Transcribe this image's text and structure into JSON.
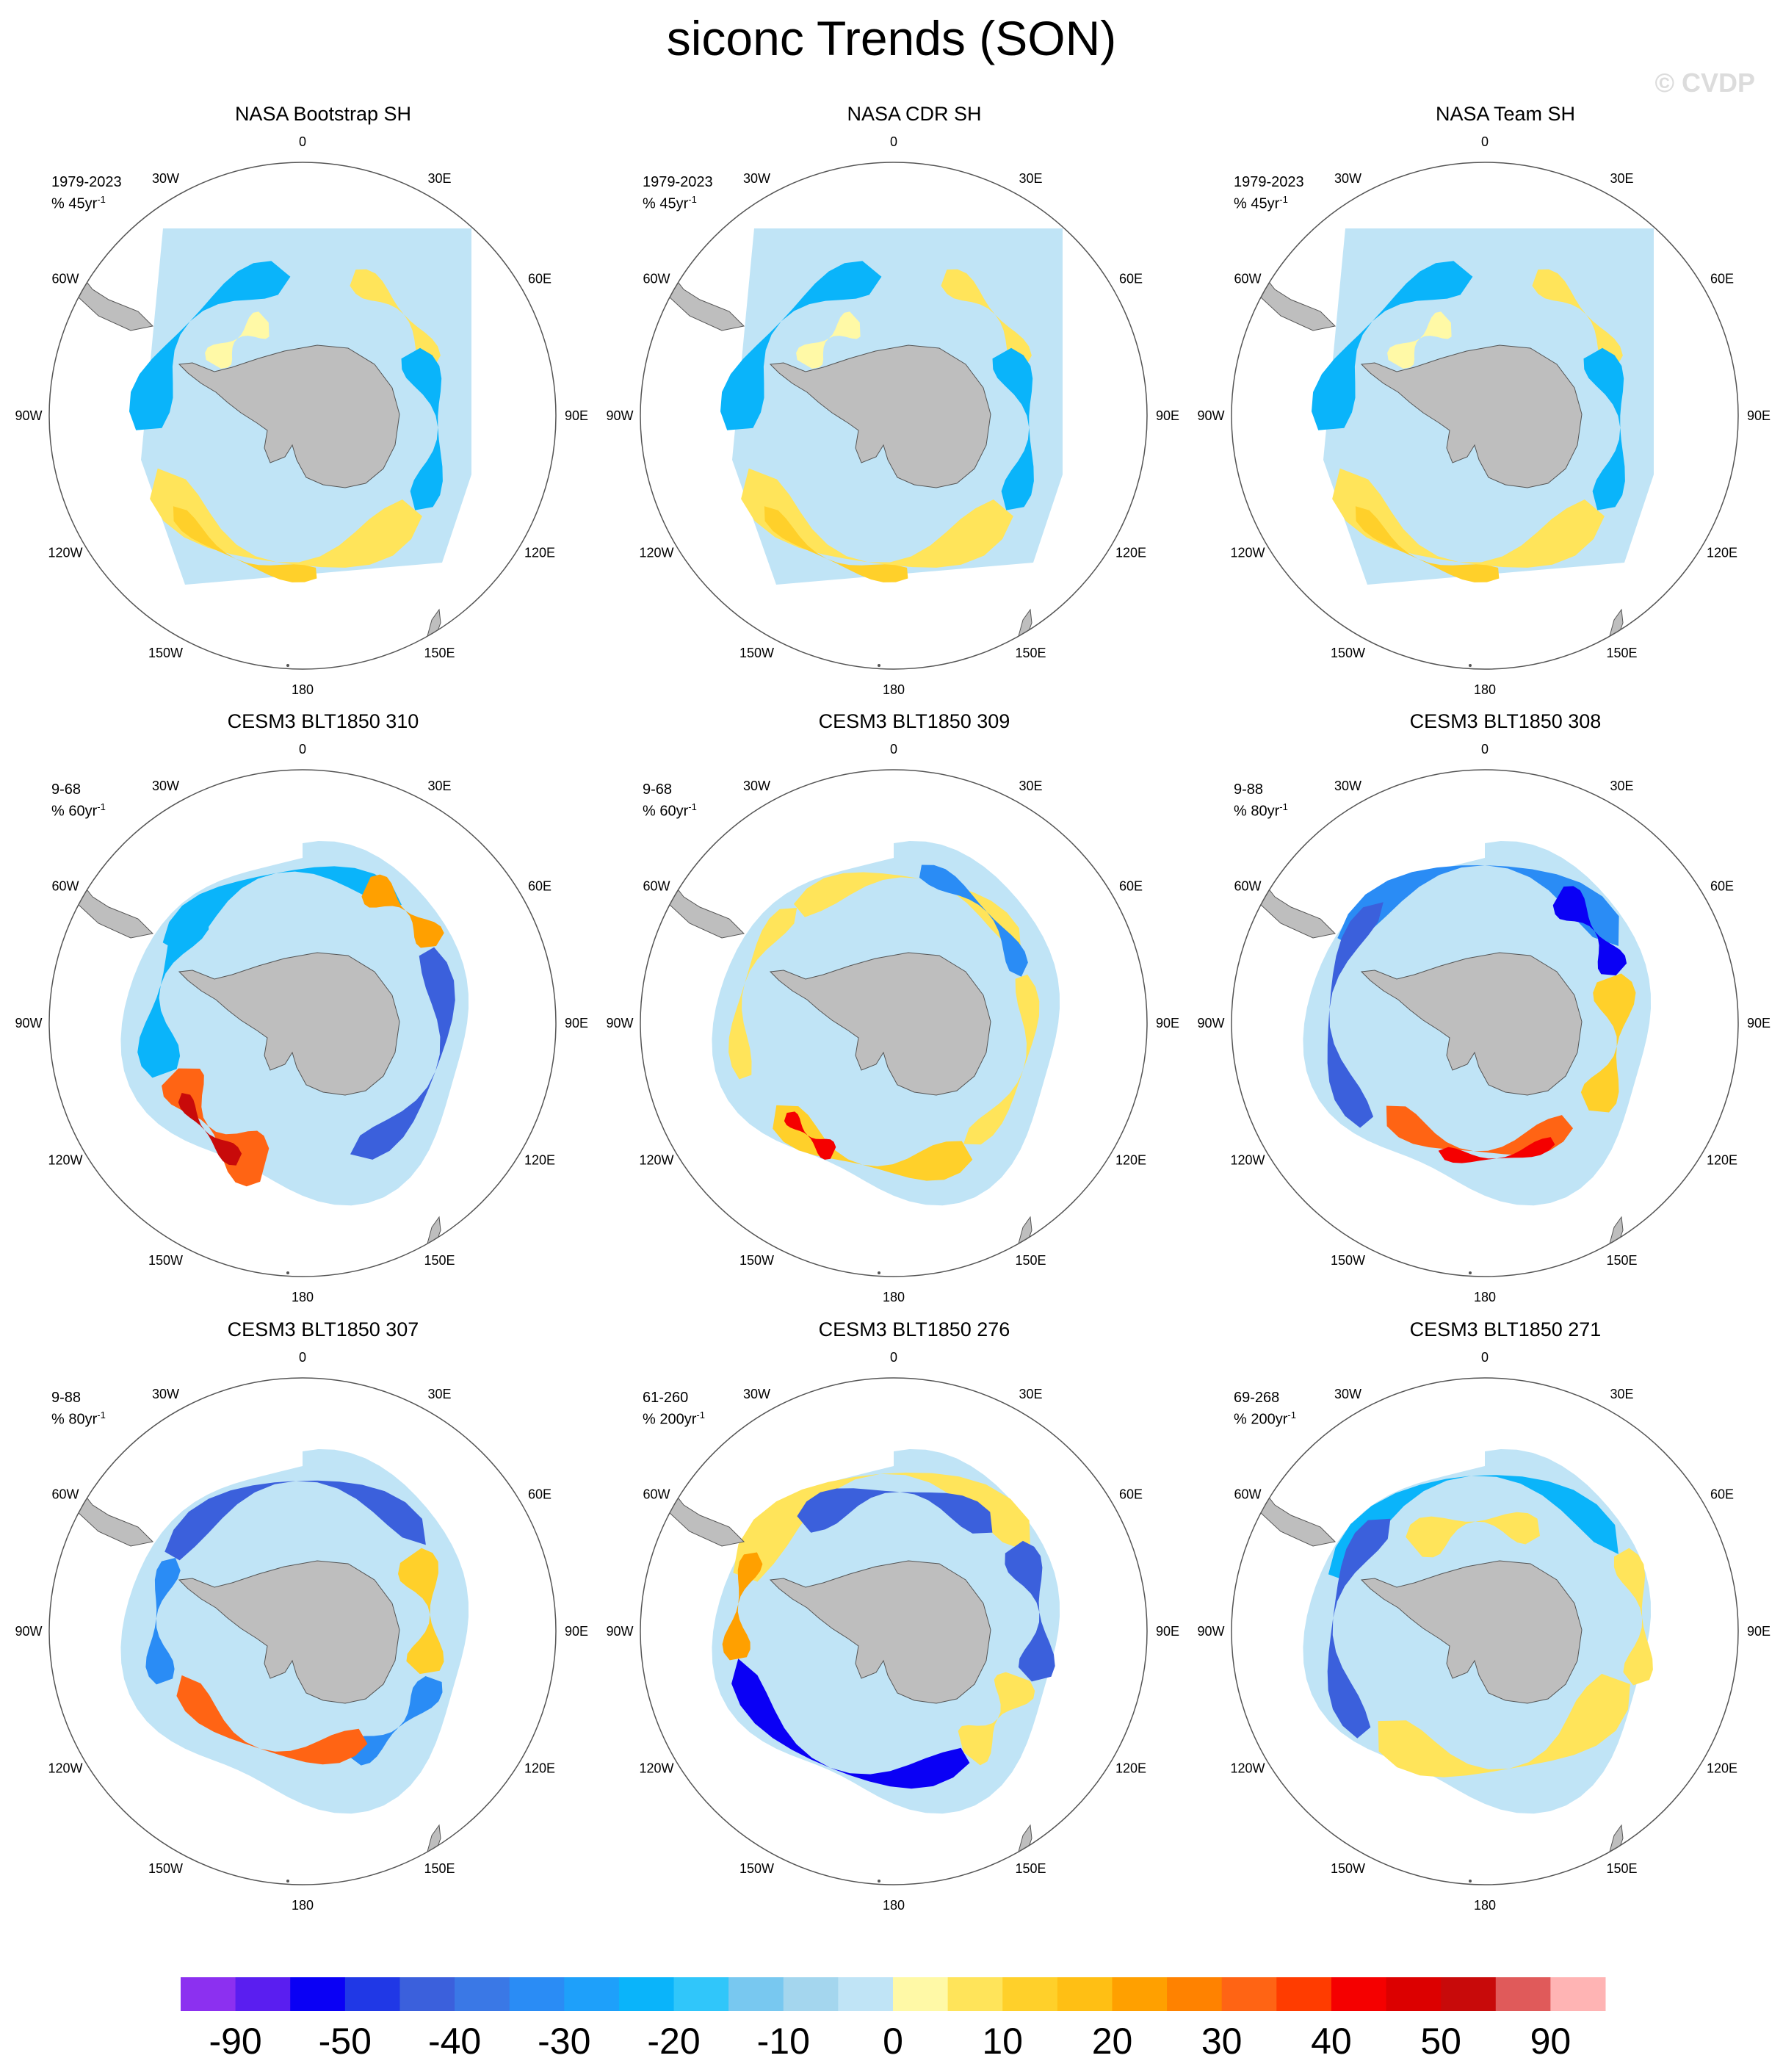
{
  "header": {
    "title": "siconc Trends (SON)",
    "watermark": "© CVDP"
  },
  "panels": [
    {
      "title": "NASA Bootstrap SH",
      "period": "1979-2023",
      "units": "% 45yr",
      "pattern": "obs1"
    },
    {
      "title": "NASA CDR SH",
      "period": "1979-2023",
      "units": "% 45yr",
      "pattern": "obs2"
    },
    {
      "title": "NASA Team SH",
      "period": "1979-2023",
      "units": "% 45yr",
      "pattern": "obs3"
    },
    {
      "title": "CESM3 BLT1850 310",
      "period": "9-68",
      "units": "% 60yr",
      "pattern": "m310"
    },
    {
      "title": "CESM3 BLT1850 309",
      "period": "9-68",
      "units": "% 60yr",
      "pattern": "m309"
    },
    {
      "title": "CESM3 BLT1850 308",
      "period": "9-88",
      "units": "% 80yr",
      "pattern": "m308"
    },
    {
      "title": "CESM3 BLT1850 307",
      "period": "9-88",
      "units": "% 80yr",
      "pattern": "m307"
    },
    {
      "title": "CESM3 BLT1850 276",
      "period": "61-260",
      "units": "% 200yr",
      "pattern": "m276"
    },
    {
      "title": "CESM3 BLT1850 271",
      "period": "69-268",
      "units": "% 200yr",
      "pattern": "m271"
    }
  ],
  "units_superscript": "-1",
  "longitude_labels": [
    "0",
    "30E",
    "60E",
    "90E",
    "120E",
    "150E",
    "180",
    "150W",
    "120W",
    "90W",
    "60W",
    "30W"
  ],
  "colorbar": {
    "colors": [
      "#8c30f0",
      "#5a1ef0",
      "#0a00f5",
      "#2038e6",
      "#3b60dc",
      "#3a78e6",
      "#2a8cf5",
      "#1ea0fa",
      "#0ab4fa",
      "#30c6fa",
      "#78c8f0",
      "#a4d6ee",
      "#c0e4f6",
      "#fff9a6",
      "#ffe45a",
      "#ffd02a",
      "#ffbf14",
      "#ffa000",
      "#ff8200",
      "#ff6414",
      "#ff3c00",
      "#f50000",
      "#dc0000",
      "#c80a0a",
      "#e05a5a",
      "#ffb4b4"
    ],
    "labels": [
      "-90",
      "-50",
      "-40",
      "-30",
      "-20",
      "-10",
      "0",
      "10",
      "20",
      "30",
      "40",
      "50",
      "90"
    ]
  }
}
